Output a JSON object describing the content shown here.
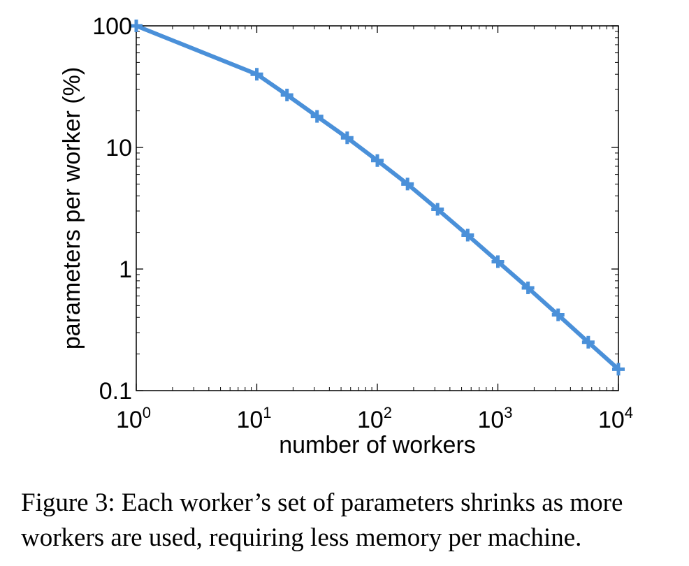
{
  "caption": "Figure 3: Each worker’s set of parameters shrinks as more workers are used, requiring less memory per machine.",
  "chart_data": {
    "type": "line",
    "xlabel": "number of workers",
    "ylabel": "parameters per worker (%)",
    "xscale": "log",
    "yscale": "log",
    "xlim": [
      1,
      10000
    ],
    "ylim": [
      0.1,
      100
    ],
    "xticks": [
      {
        "value": 1,
        "base": "10",
        "exp": "0"
      },
      {
        "value": 10,
        "base": "10",
        "exp": "1"
      },
      {
        "value": 100,
        "base": "10",
        "exp": "2"
      },
      {
        "value": 1000,
        "base": "10",
        "exp": "3"
      },
      {
        "value": 10000,
        "base": "10",
        "exp": "4"
      }
    ],
    "yticks": [
      {
        "value": 0.1,
        "label": "0.1"
      },
      {
        "value": 1,
        "label": "1"
      },
      {
        "value": 10,
        "label": "10"
      },
      {
        "value": 100,
        "label": "100"
      }
    ],
    "grid": false,
    "color": "#4a90d9",
    "marker": "plus",
    "series": [
      {
        "x": [
          1,
          10,
          17.8,
          31.6,
          56.2,
          100,
          178,
          316,
          562,
          1000,
          1778,
          3162,
          5623,
          10000
        ],
        "y": [
          100,
          40,
          27,
          18,
          12,
          7.8,
          5,
          3.1,
          1.9,
          1.15,
          0.7,
          0.42,
          0.25,
          0.15
        ]
      }
    ]
  }
}
